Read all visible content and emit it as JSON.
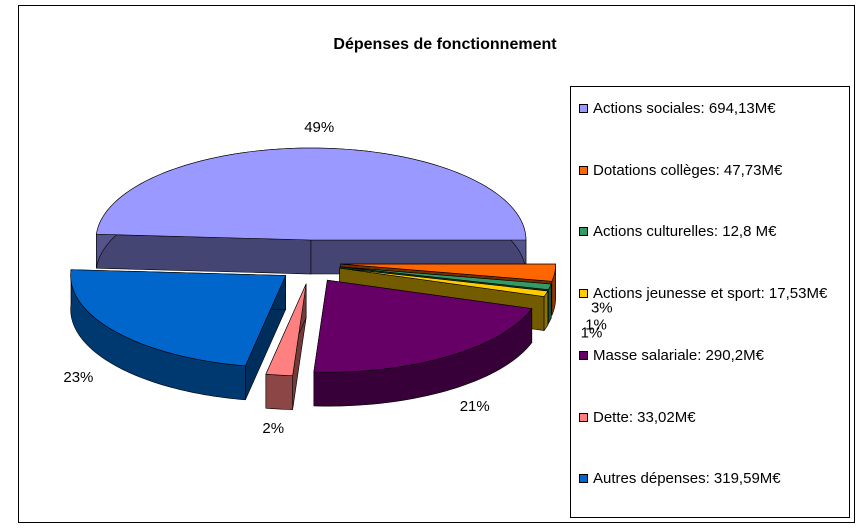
{
  "chart_data": {
    "type": "pie",
    "title": "Dépenses de fonctionnement",
    "categories": [
      "Actions sociales: 694,13M€",
      "Dotations collèges: 47,73M€",
      "Actions culturelles: 12,8 M€",
      "Actions jeunesse et sport: 17,53M€",
      "Masse salariale: 290,2M€",
      "Dette: 33,02M€",
      "Autres dépenses: 319,59M€"
    ],
    "values": [
      49,
      3,
      1,
      1,
      21,
      2,
      23
    ],
    "value_labels": [
      "49%",
      "3%",
      "1%",
      "1%",
      "21%",
      "2%",
      "23%"
    ],
    "colors": [
      "#9999ff",
      "#ff6600",
      "#339966",
      "#ffcc00",
      "#660066",
      "#ff8080",
      "#0066cc"
    ],
    "legend": "right",
    "exploded": true,
    "three_d": true
  }
}
